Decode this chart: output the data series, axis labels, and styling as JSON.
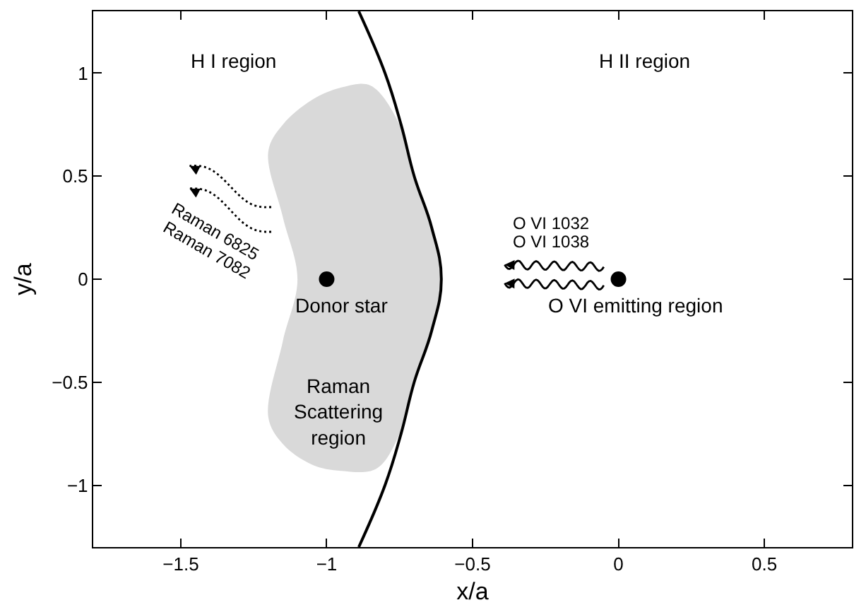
{
  "chart_data": {
    "type": "line",
    "xlabel": "x/a",
    "ylabel": "y/a",
    "xlim": [
      -1.8,
      0.8
    ],
    "xticks": [
      {
        "value": -1.5,
        "label": "−1.5"
      },
      {
        "value": -1,
        "label": "−1"
      },
      {
        "value": -0.5,
        "label": "−0.5"
      },
      0,
      0.5
    ],
    "ylim": [
      -1.3,
      1.3
    ],
    "yticks": [
      {
        "value": -1,
        "label": "−1"
      },
      {
        "value": -0.5,
        "label": "−0.5"
      },
      0,
      0.5,
      1
    ],
    "grid": false,
    "series": [
      {
        "type": "area",
        "color": "#d9d9d9",
        "x": [
          -0.85,
          -0.95,
          -1.05,
          -1.15,
          -1.2,
          -1.15,
          -1.1,
          -1.15,
          -1.2,
          -1.15,
          -1.05,
          -0.95,
          -0.83,
          -0.75,
          -0.7,
          -0.64,
          -0.607,
          -0.64,
          -0.7,
          -0.75,
          -0.85
        ],
        "values": [
          0.94,
          0.93,
          0.87,
          0.75,
          0.62,
          0.3,
          0,
          -0.3,
          -0.67,
          -0.8,
          -0.9,
          -0.93,
          -0.92,
          -0.75,
          -0.5,
          -0.25,
          0,
          0.25,
          0.5,
          0.75,
          0.94
        ]
      },
      {
        "color": "#000000",
        "x": [
          -0.89,
          -0.8,
          -0.745,
          -0.7,
          -0.64,
          -0.607,
          -0.64,
          -0.7,
          -0.745,
          -0.8,
          -0.89
        ],
        "values": [
          1.3,
          1,
          0.75,
          0.5,
          0.25,
          0,
          -0.25,
          -0.5,
          -0.75,
          -1,
          -1.3
        ]
      },
      {
        "type": "scatter",
        "color": "#000000",
        "x": [
          -1
        ],
        "values": [
          0
        ]
      },
      {
        "type": "scatter",
        "color": "#000000",
        "x": [
          0
        ],
        "values": [
          0
        ]
      }
    ],
    "annotations": [
      "H I region",
      "H II region",
      "Raman 6825",
      "Raman 7082",
      "Donor star",
      "Raman\nScattering\nregion",
      "O VI 1032",
      "O VI 1038",
      "O VI emitting region"
    ]
  }
}
